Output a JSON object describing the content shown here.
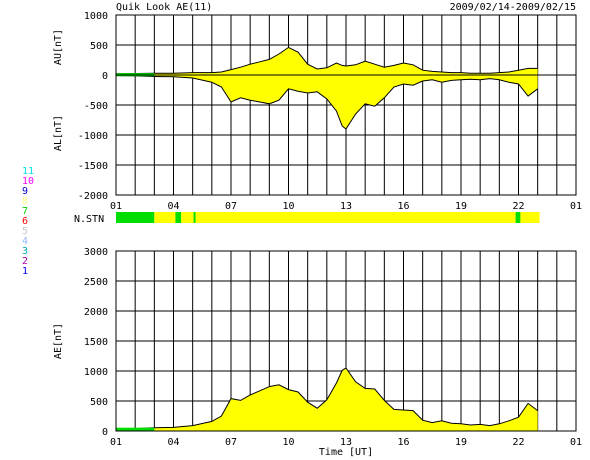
{
  "header": {
    "title": "Quik Look AE(11)",
    "date_range": "2009/02/14-2009/02/15"
  },
  "colors": {
    "fill_main": "#ffff00",
    "fill_low": "#00dd00",
    "grid": "#000000"
  },
  "station_legend": [
    {
      "label": "11",
      "color": "#00e0e0"
    },
    {
      "label": "10",
      "color": "#ff00ff"
    },
    {
      "label": "9",
      "color": "#0000cc"
    },
    {
      "label": "8",
      "color": "#ffff80"
    },
    {
      "label": "7",
      "color": "#00cc00"
    },
    {
      "label": "6",
      "color": "#ff0000"
    },
    {
      "label": "5",
      "color": "#c8c8c8"
    },
    {
      "label": "4",
      "color": "#90b8ff"
    },
    {
      "label": "3",
      "color": "#00aaaa"
    },
    {
      "label": "2",
      "color": "#aa00aa"
    },
    {
      "label": "1",
      "color": "#0000ff"
    }
  ],
  "chart_data": [
    {
      "type": "area",
      "name": "AU/AL",
      "ylabel_upper": "AU[nT]",
      "ylabel_lower": "AL[nT]",
      "ylim": [
        -2000,
        1000
      ],
      "yticks": [
        1000,
        500,
        0,
        -500,
        -1000,
        -1500,
        -2000
      ],
      "xlim": [
        1,
        25
      ],
      "xticks": [
        "01",
        "04",
        "07",
        "10",
        "13",
        "16",
        "19",
        "22",
        "01"
      ],
      "grid": true,
      "x_hours": [
        1,
        2,
        3,
        4,
        5,
        6,
        6.5,
        7,
        7.5,
        8,
        8.5,
        9,
        9.5,
        10,
        10.5,
        11,
        11.5,
        12,
        12.5,
        12.8,
        13,
        13.5,
        14,
        14.5,
        15,
        15.5,
        16,
        16.5,
        17,
        17.5,
        18,
        18.5,
        19,
        19.5,
        20,
        20.5,
        21,
        21.5,
        22,
        22.5,
        23
      ],
      "au": [
        20,
        25,
        30,
        30,
        40,
        40,
        50,
        90,
        130,
        180,
        220,
        260,
        350,
        460,
        380,
        180,
        100,
        120,
        200,
        160,
        150,
        170,
        230,
        180,
        130,
        160,
        200,
        170,
        80,
        60,
        50,
        40,
        40,
        30,
        30,
        30,
        40,
        50,
        80,
        110,
        110
      ],
      "al": [
        -10,
        -15,
        -25,
        -30,
        -50,
        -120,
        -200,
        -450,
        -380,
        -420,
        -450,
        -480,
        -420,
        -230,
        -270,
        -300,
        -280,
        -400,
        -600,
        -850,
        -900,
        -650,
        -480,
        -520,
        -380,
        -200,
        -150,
        -170,
        -100,
        -80,
        -120,
        -90,
        -80,
        -70,
        -80,
        -60,
        -80,
        -120,
        -150,
        -350,
        -230
      ]
    },
    {
      "type": "bar",
      "name": "N.STN",
      "label": "N.STN",
      "segments": [
        {
          "from": 1,
          "to": 3,
          "stations": 7
        },
        {
          "from": 3,
          "to": 4.1,
          "stations": 8
        },
        {
          "from": 4.1,
          "to": 4.4,
          "stations": 7
        },
        {
          "from": 4.4,
          "to": 5.05,
          "stations": 8
        },
        {
          "from": 5.05,
          "to": 5.15,
          "stations": 7
        },
        {
          "from": 5.15,
          "to": 21.85,
          "stations": 8
        },
        {
          "from": 21.85,
          "to": 22.1,
          "stations": 7
        },
        {
          "from": 22.1,
          "to": 23.1,
          "stations": 8
        }
      ]
    },
    {
      "type": "area",
      "name": "AE",
      "ylabel": "AE[nT]",
      "xlabel": "Time [UT]",
      "ylim": [
        0,
        3000
      ],
      "yticks": [
        3000,
        2500,
        2000,
        1500,
        1000,
        500,
        0
      ],
      "xlim": [
        1,
        25
      ],
      "xticks": [
        "01",
        "04",
        "07",
        "10",
        "13",
        "16",
        "19",
        "22",
        "01"
      ],
      "grid": true,
      "x_hours": [
        1,
        2,
        3,
        4,
        5,
        6,
        6.5,
        7,
        7.5,
        8,
        8.5,
        9,
        9.5,
        10,
        10.5,
        11,
        11.5,
        12,
        12.5,
        12.8,
        13,
        13.5,
        14,
        14.5,
        15,
        15.5,
        16,
        16.5,
        17,
        17.5,
        18,
        18.5,
        19,
        19.5,
        20,
        20.5,
        21,
        21.5,
        22,
        22.5,
        23
      ],
      "ae": [
        30,
        40,
        55,
        60,
        90,
        160,
        250,
        540,
        510,
        600,
        670,
        740,
        770,
        690,
        650,
        480,
        380,
        520,
        800,
        1010,
        1050,
        820,
        710,
        700,
        510,
        360,
        350,
        340,
        180,
        140,
        170,
        130,
        120,
        100,
        110,
        90,
        120,
        170,
        230,
        460,
        340
      ]
    }
  ]
}
